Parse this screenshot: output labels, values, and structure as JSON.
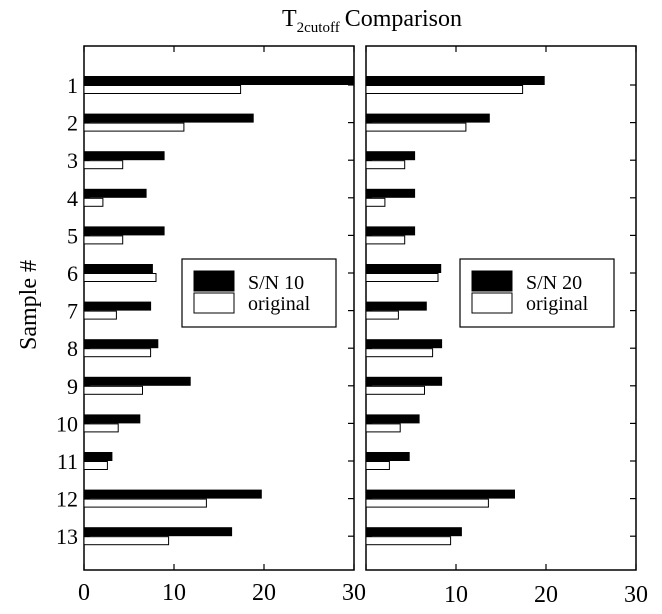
{
  "chart_data": {
    "type": "bar",
    "orientation": "horizontal",
    "title_main": "T",
    "title_sub": "2cutoff",
    "title_rest": "Comparison",
    "ylabel": "Sample  #",
    "categories": [
      "1",
      "2",
      "3",
      "4",
      "5",
      "6",
      "7",
      "8",
      "9",
      "10",
      "11",
      "12",
      "13"
    ],
    "xlim": [
      0,
      30
    ],
    "colors": {
      "filled": "#000000",
      "open": "#ffffff"
    },
    "panels": [
      {
        "legend": [
          "S/N 10",
          "original"
        ],
        "legend_position": "center-right",
        "x_ticks": [
          "0",
          "10",
          "20",
          "30"
        ],
        "series": [
          {
            "name": "S/N 10",
            "values": [
              30,
              18.8,
              8.9,
              6.9,
              8.9,
              7.6,
              7.4,
              8.2,
              11.8,
              6.2,
              3.1,
              19.7,
              16.4
            ]
          },
          {
            "name": "original",
            "values": [
              17.4,
              11.1,
              4.3,
              2.1,
              4.3,
              8.0,
              3.6,
              7.4,
              6.5,
              3.8,
              2.6,
              13.6,
              9.4
            ]
          }
        ]
      },
      {
        "legend": [
          "S/N 20",
          "original"
        ],
        "legend_position": "center-right",
        "x_ticks": [
          "10",
          "20",
          "30"
        ],
        "series": [
          {
            "name": "S/N 20",
            "values": [
              19.8,
              13.7,
              5.4,
              5.4,
              5.4,
              8.3,
              6.7,
              8.4,
              8.4,
              5.9,
              4.8,
              16.5,
              10.6
            ]
          },
          {
            "name": "original",
            "values": [
              17.4,
              11.1,
              4.3,
              2.1,
              4.3,
              8.0,
              3.6,
              7.4,
              6.5,
              3.8,
              2.6,
              13.6,
              9.4
            ]
          }
        ]
      }
    ]
  }
}
